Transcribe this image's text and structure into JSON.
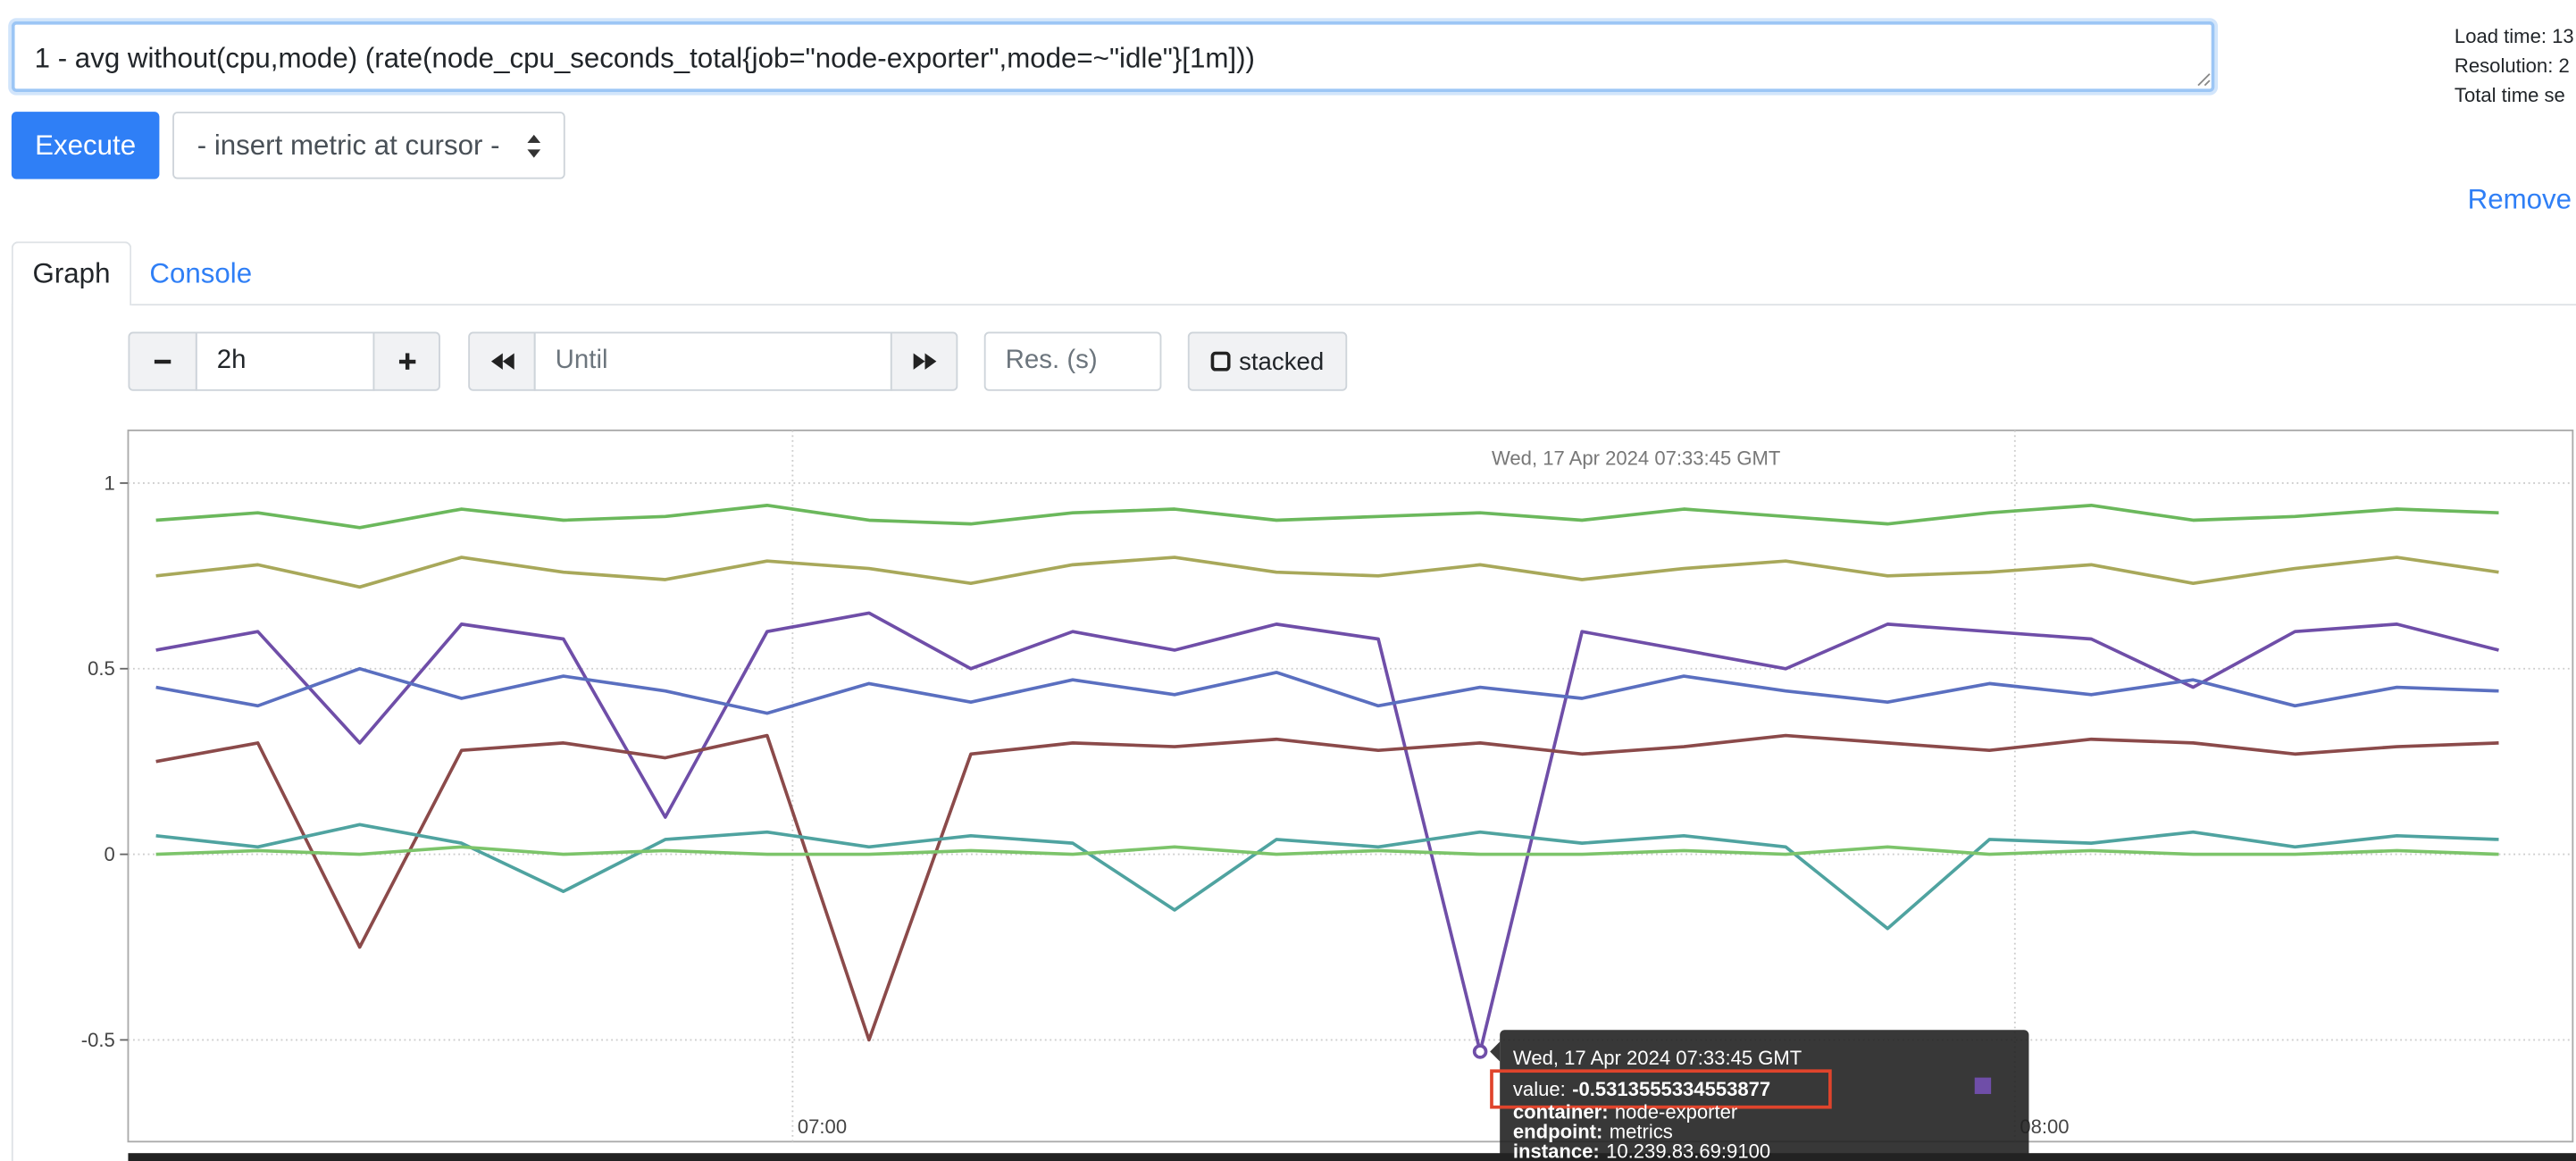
{
  "query": "1 - avg without(cpu,mode) (rate(node_cpu_seconds_total{job=\"node-exporter\",mode=~\"idle\"}[1m]))",
  "stats": [
    "Load time: 13",
    "Resolution: 2",
    "Total time se"
  ],
  "execute_button": "Execute",
  "metric_select": "- insert metric at cursor -",
  "remove_link": "Remove",
  "tabs": [
    "Graph",
    "Console"
  ],
  "controls": {
    "range": "2h",
    "until_placeholder": "Until",
    "resolution_placeholder": "Res. (s)",
    "stacked": "stacked"
  },
  "chart_data": {
    "type": "line",
    "hover_time": "Wed, 17 Apr 2024 07:33:45 GMT",
    "x": [
      "06:28:45",
      "06:33:45",
      "06:38:45",
      "06:43:45",
      "06:48:45",
      "06:53:45",
      "06:58:45",
      "07:03:45",
      "07:08:45",
      "07:13:45",
      "07:18:45",
      "07:23:45",
      "07:28:45",
      "07:33:45",
      "07:38:45",
      "07:43:45",
      "07:48:45",
      "07:53:45",
      "07:58:45",
      "08:03:45",
      "08:08:45",
      "08:13:45",
      "08:18:45",
      "08:23:45"
    ],
    "xlim": [
      "06:27:23",
      "08:27:23"
    ],
    "xticks": [
      "07:00",
      "08:00"
    ],
    "ylim": [
      -0.774,
      1.142
    ],
    "yticks": [
      -0.5,
      0,
      0.5,
      1
    ],
    "grid": true,
    "series": [
      {
        "color": "#6f4ea8",
        "values": [
          0.55,
          0.6,
          0.3,
          0.62,
          0.58,
          0.1,
          0.6,
          0.65,
          0.5,
          0.6,
          0.55,
          0.62,
          0.58,
          -0.5313555334553877,
          0.6,
          0.55,
          0.5,
          0.62,
          0.6,
          0.58,
          0.45,
          0.6,
          0.62,
          0.55
        ]
      },
      {
        "color": "#6bb85c",
        "values": [
          0.9,
          0.92,
          0.88,
          0.93,
          0.9,
          0.91,
          0.94,
          0.9,
          0.89,
          0.92,
          0.93,
          0.9,
          0.91,
          0.92,
          0.9,
          0.93,
          0.91,
          0.89,
          0.92,
          0.94,
          0.9,
          0.91,
          0.93,
          0.92
        ]
      },
      {
        "color": "#8b4a4a",
        "values": [
          0.25,
          0.3,
          -0.25,
          0.28,
          0.3,
          0.26,
          0.32,
          -0.5,
          0.27,
          0.3,
          0.29,
          0.31,
          0.28,
          0.3,
          0.27,
          0.29,
          0.32,
          0.3,
          0.28,
          0.31,
          0.3,
          0.27,
          0.29,
          0.3
        ]
      },
      {
        "color": "#a8a85a",
        "values": [
          0.75,
          0.78,
          0.72,
          0.8,
          0.76,
          0.74,
          0.79,
          0.77,
          0.73,
          0.78,
          0.8,
          0.76,
          0.75,
          0.78,
          0.74,
          0.77,
          0.79,
          0.75,
          0.76,
          0.78,
          0.73,
          0.77,
          0.8,
          0.76
        ]
      },
      {
        "color": "#4fa3a0",
        "values": [
          0.05,
          0.02,
          0.08,
          0.03,
          -0.1,
          0.04,
          0.06,
          0.02,
          0.05,
          0.03,
          -0.15,
          0.04,
          0.02,
          0.06,
          0.03,
          0.05,
          0.02,
          -0.2,
          0.04,
          0.03,
          0.06,
          0.02,
          0.05,
          0.04
        ]
      },
      {
        "color": "#5a6fc0",
        "values": [
          0.45,
          0.4,
          0.5,
          0.42,
          0.48,
          0.44,
          0.38,
          0.46,
          0.41,
          0.47,
          0.43,
          0.49,
          0.4,
          0.45,
          0.42,
          0.48,
          0.44,
          0.41,
          0.46,
          0.43,
          0.47,
          0.4,
          0.45,
          0.44
        ]
      },
      {
        "color": "#7cc46a",
        "values": [
          0.0,
          0.01,
          0.0,
          0.02,
          0.0,
          0.01,
          0.0,
          0.0,
          0.01,
          0.0,
          0.02,
          0.0,
          0.01,
          0.0,
          0.0,
          0.01,
          0.0,
          0.02,
          0.0,
          0.01,
          0.0,
          0.0,
          0.01,
          0.0
        ]
      }
    ],
    "tooltip": {
      "series": 0,
      "index": 13,
      "value_key": "value:",
      "labels": [
        {
          "key": "container:",
          "value": "node-exporter"
        },
        {
          "key": "endpoint:",
          "value": "metrics"
        },
        {
          "key": "instance:",
          "value": "10.239.83.69:9100"
        }
      ]
    }
  }
}
